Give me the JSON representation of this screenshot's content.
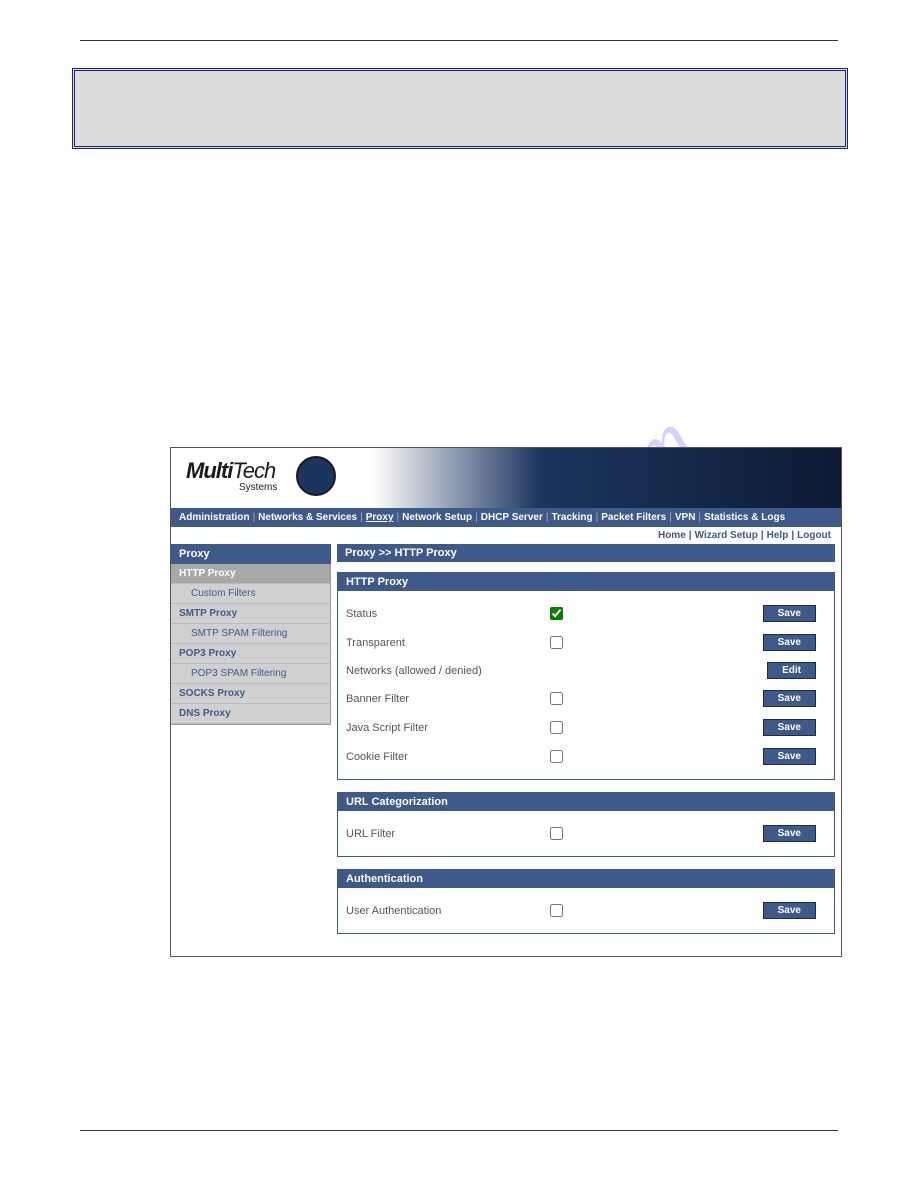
{
  "watermark_text": "manualshive.com",
  "logo": {
    "main": "Multi",
    "main2": "Tech",
    "sub": "Systems"
  },
  "main_nav": [
    "Administration",
    "Networks & Services",
    "Proxy",
    "Network Setup",
    "DHCP Server",
    "Tracking",
    "Packet Filters",
    "VPN",
    "Statistics & Logs"
  ],
  "main_nav_active_index": 2,
  "sub_nav": [
    "Home",
    "Wizard Setup",
    "Help",
    "Logout"
  ],
  "sidebar": {
    "title": "Proxy",
    "items": [
      {
        "label": "HTTP Proxy",
        "sub": false,
        "active": true
      },
      {
        "label": "Custom Filters",
        "sub": true,
        "active": false
      },
      {
        "label": "SMTP Proxy",
        "sub": false,
        "active": false
      },
      {
        "label": "SMTP SPAM Filtering",
        "sub": true,
        "active": false
      },
      {
        "label": "POP3 Proxy",
        "sub": false,
        "active": false
      },
      {
        "label": "POP3 SPAM Filtering",
        "sub": true,
        "active": false
      },
      {
        "label": "SOCKS Proxy",
        "sub": false,
        "active": false
      },
      {
        "label": "DNS Proxy",
        "sub": false,
        "active": false
      }
    ]
  },
  "breadcrumb": "Proxy >> HTTP Proxy",
  "panels": [
    {
      "title": "HTTP Proxy",
      "rows": [
        {
          "label": "Status",
          "type": "checkbox",
          "checked": true,
          "green": true,
          "button": "Save"
        },
        {
          "label": "Transparent",
          "type": "checkbox",
          "checked": false,
          "button": "Save"
        },
        {
          "label": "Networks (allowed / denied)",
          "type": "none",
          "button": "Edit"
        },
        {
          "label": "Banner Filter",
          "type": "checkbox",
          "checked": false,
          "button": "Save"
        },
        {
          "label": "Java Script Filter",
          "type": "checkbox",
          "checked": false,
          "button": "Save"
        },
        {
          "label": "Cookie Filter",
          "type": "checkbox",
          "checked": false,
          "button": "Save"
        }
      ]
    },
    {
      "title": "URL Categorization",
      "rows": [
        {
          "label": "URL Filter",
          "type": "checkbox",
          "checked": false,
          "button": "Save"
        }
      ]
    },
    {
      "title": "Authentication",
      "rows": [
        {
          "label": "User Authentication",
          "type": "checkbox",
          "checked": false,
          "button": "Save"
        }
      ]
    }
  ],
  "buttons": {
    "save": "Save",
    "edit": "Edit"
  }
}
